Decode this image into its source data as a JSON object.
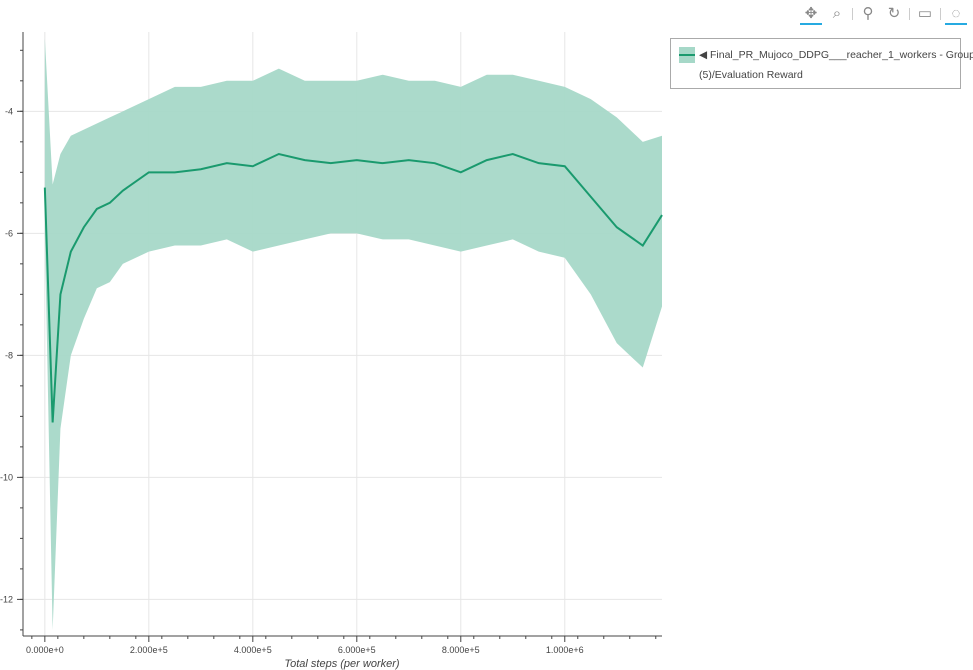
{
  "toolbar": {
    "tools": [
      {
        "name": "pan-icon",
        "glyph": "✥",
        "active": true
      },
      {
        "name": "box-zoom-icon",
        "glyph": "⌕",
        "active": false
      },
      {
        "name": "wheel-zoom-icon",
        "glyph": "⚲",
        "active": false
      },
      {
        "name": "reset-icon",
        "glyph": "↻",
        "active": false
      },
      {
        "name": "save-icon",
        "glyph": "▭",
        "active": false
      },
      {
        "name": "crosshair-icon",
        "glyph": "◌",
        "active": true
      },
      {
        "name": "bokeh-logo-icon",
        "glyph": "✿",
        "active": false
      }
    ]
  },
  "legend": {
    "marker": "◀",
    "line1": "Final_PR_Mujoco_DDPG___reacher_1_workers - Group",
    "line2": "(5)/Evaluation Reward"
  },
  "colors": {
    "band": "#a6d8c8",
    "line": "#1a9a6e",
    "grid": "#e6e6e6",
    "axis": "#444444"
  },
  "chart_data": {
    "type": "line",
    "title": "",
    "xlabel": "Total steps (per worker)",
    "ylabel": "",
    "xlim": [
      -42000,
      1187000
    ],
    "ylim": [
      -12.6,
      -2.7
    ],
    "xticks": [
      0,
      200000,
      400000,
      600000,
      800000,
      1000000
    ],
    "xtick_labels": [
      "0.000e+0",
      "2.000e+5",
      "4.000e+5",
      "6.000e+5",
      "8.000e+5",
      "1.000e+6"
    ],
    "yticks": [
      -4,
      -6,
      -8,
      -10,
      -12
    ],
    "ytick_labels": [
      "-4",
      "-6",
      "-8",
      "-10",
      "-12"
    ],
    "grid": true,
    "legend_placement": "outside-right-top",
    "series": [
      {
        "name": "Final_PR_Mujoco_DDPG___reacher_1_workers - Group (5)/Evaluation Reward",
        "x": [
          0,
          15000,
          30000,
          50000,
          75000,
          100000,
          125000,
          150000,
          200000,
          250000,
          300000,
          350000,
          400000,
          450000,
          500000,
          550000,
          600000,
          650000,
          700000,
          750000,
          800000,
          850000,
          900000,
          950000,
          1000000,
          1050000,
          1100000,
          1150000,
          1187000
        ],
        "mean": [
          -5.25,
          -9.1,
          -7.0,
          -6.3,
          -5.9,
          -5.6,
          -5.5,
          -5.3,
          -5.0,
          -5.0,
          -4.95,
          -4.85,
          -4.9,
          -4.7,
          -4.8,
          -4.85,
          -4.8,
          -4.85,
          -4.8,
          -4.85,
          -5.0,
          -4.8,
          -4.7,
          -4.85,
          -4.9,
          -5.4,
          -5.9,
          -6.2,
          -5.7
        ],
        "upper": [
          -2.8,
          -5.2,
          -4.7,
          -4.4,
          -4.3,
          -4.2,
          -4.1,
          -4.0,
          -3.8,
          -3.6,
          -3.6,
          -3.5,
          -3.5,
          -3.3,
          -3.5,
          -3.5,
          -3.5,
          -3.4,
          -3.5,
          -3.5,
          -3.6,
          -3.4,
          -3.4,
          -3.5,
          -3.6,
          -3.8,
          -4.1,
          -4.5,
          -4.4
        ],
        "lower": [
          -6.0,
          -12.5,
          -9.2,
          -8.0,
          -7.4,
          -6.9,
          -6.8,
          -6.5,
          -6.3,
          -6.2,
          -6.2,
          -6.1,
          -6.3,
          -6.2,
          -6.1,
          -6.0,
          -6.0,
          -6.1,
          -6.1,
          -6.2,
          -6.3,
          -6.2,
          -6.1,
          -6.3,
          -6.4,
          -7.0,
          -7.8,
          -8.2,
          -7.2
        ]
      }
    ]
  }
}
